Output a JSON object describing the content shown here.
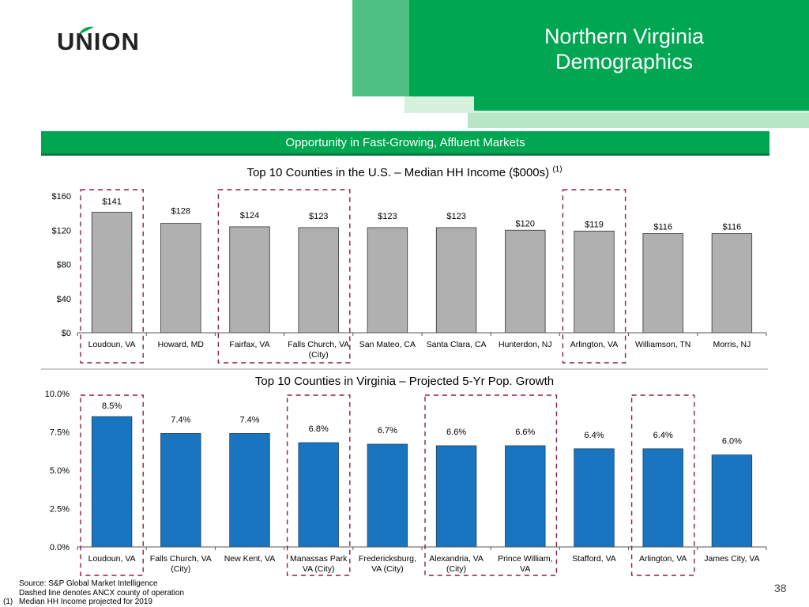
{
  "logo": {
    "text": "UNION"
  },
  "header": {
    "title_line1": "Northern Virginia",
    "title_line2": "Demographics"
  },
  "banner": {
    "text": "Opportunity in Fast-Growing, Affluent Markets"
  },
  "colors": {
    "green": "#00a651",
    "light_green": "#9fdcb3",
    "mid_green": "#4cc07f",
    "gray_bar": "#b0b0b0",
    "blue_bar": "#1a75c0",
    "dash": "#8b1f3f"
  },
  "chart1_title": {
    "text": "Top 10 Counties in the U.S. – Median HH Income ($000s)",
    "note": "(1)"
  },
  "chart2_title": {
    "text": "Top 10 Counties in Virginia – Projected 5-Yr Pop. Growth"
  },
  "chart_data": [
    {
      "type": "bar",
      "title": "Top 10 Counties in the U.S. – Median HH Income ($000s) (1)",
      "categories": [
        "Loudoun, VA",
        "Howard, MD",
        "Fairfax, VA",
        "Falls Church, VA (City)",
        "San Mateo, CA",
        "Santa Clara, CA",
        "Hunterdon, NJ",
        "Arlington, VA",
        "Williamson, TN",
        "Morris, NJ"
      ],
      "category_lines": [
        [
          "Loudoun, VA"
        ],
        [
          "Howard, MD"
        ],
        [
          "Fairfax, VA"
        ],
        [
          "Falls Church, VA",
          "(City)"
        ],
        [
          "San Mateo, CA"
        ],
        [
          "Santa Clara, CA"
        ],
        [
          "Hunterdon, NJ"
        ],
        [
          "Arlington, VA"
        ],
        [
          "Williamson, TN"
        ],
        [
          "Morris, NJ"
        ]
      ],
      "values": [
        141,
        128,
        124,
        123,
        123,
        123,
        120,
        119,
        116,
        116
      ],
      "data_labels": [
        "$141",
        "$128",
        "$124",
        "$123",
        "$123",
        "$123",
        "$120",
        "$119",
        "$116",
        "$116"
      ],
      "ylim": [
        0,
        160
      ],
      "yticks": [
        0,
        40,
        80,
        120,
        160
      ],
      "ytick_labels": [
        "$0",
        "$40",
        "$80",
        "$120",
        "$160"
      ],
      "xlabel": "",
      "ylabel": "",
      "highlight_groups": [
        [
          0,
          0
        ],
        [
          2,
          3
        ],
        [
          7,
          7
        ]
      ]
    },
    {
      "type": "bar",
      "title": "Top 10 Counties in Virginia – Projected 5-Yr Pop. Growth",
      "categories": [
        "Loudoun, VA",
        "Falls Church, VA (City)",
        "New Kent, VA",
        "Manassas Park VA (City)",
        "Fredericksburg, VA (City)",
        "Alexandria, VA (City)",
        "Prince William, VA",
        "Stafford, VA",
        "Arlington, VA",
        "James City, VA"
      ],
      "category_lines": [
        [
          "Loudoun, VA"
        ],
        [
          "Falls Church, VA",
          "(City)"
        ],
        [
          "New Kent, VA"
        ],
        [
          "Manassas Park",
          "VA (City)"
        ],
        [
          "Fredericksburg,",
          "VA (City)"
        ],
        [
          "Alexandria, VA",
          "(City)"
        ],
        [
          "Prince William,",
          "VA"
        ],
        [
          "Stafford, VA"
        ],
        [
          "Arlington, VA"
        ],
        [
          "James City, VA"
        ]
      ],
      "values": [
        8.5,
        7.4,
        7.4,
        6.8,
        6.7,
        6.6,
        6.6,
        6.4,
        6.4,
        6.0
      ],
      "data_labels": [
        "8.5%",
        "7.4%",
        "7.4%",
        "6.8%",
        "6.7%",
        "6.6%",
        "6.6%",
        "6.4%",
        "6.4%",
        "6.0%"
      ],
      "ylim": [
        0,
        10
      ],
      "yticks": [
        0,
        2.5,
        5,
        7.5,
        10
      ],
      "ytick_labels": [
        "0.0%",
        "2.5%",
        "5.0%",
        "7.5%",
        "10.0%"
      ],
      "xlabel": "",
      "ylabel": "",
      "highlight_groups": [
        [
          0,
          0
        ],
        [
          3,
          3
        ],
        [
          5,
          6
        ],
        [
          8,
          8
        ]
      ]
    }
  ],
  "footer": {
    "source": "Source: S&P Global Market Intelligence",
    "dashed_note": "Dashed line denotes ANCX county of operation",
    "note_num": "(1)",
    "note_text": "Median HH Income projected for 2019"
  },
  "page_number": "38"
}
